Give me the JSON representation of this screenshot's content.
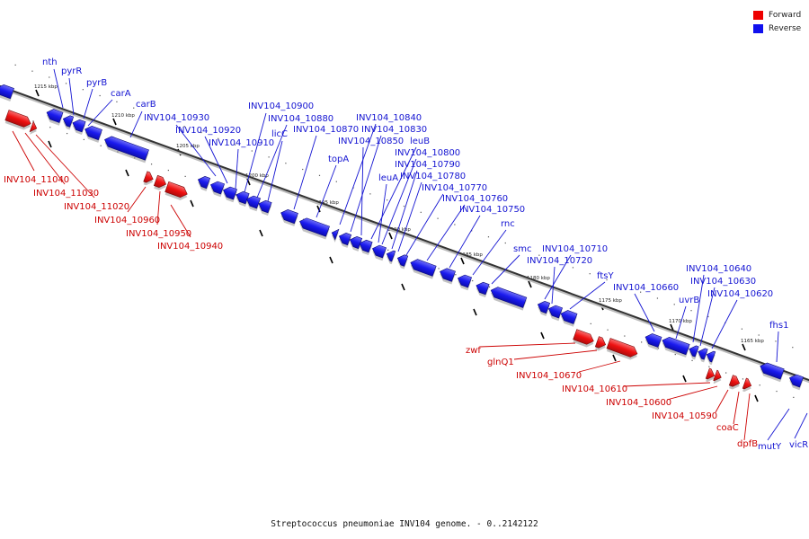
{
  "legend": {
    "forward_label": "Forward",
    "reverse_label": "Reverse",
    "forward_color": "#ee0000",
    "reverse_color": "#1010ee"
  },
  "caption": "Streptococcus pneumoniae INV104 genome. - 0..2142122",
  "scale_ticks": [
    "1215 kbp",
    "1210 kbp",
    "1205 kbp",
    "1200 kbp",
    "1195 kbp",
    "1190 kbp",
    "1185 kbp",
    "1180 kbp",
    "1175 kbp",
    "1170 kbp",
    "1165 kbp"
  ],
  "reverse_genes": [
    "nth",
    "pyrR",
    "pyrB",
    "carA",
    "carB",
    "INV104_10930",
    "INV104_10920",
    "INV104_10910",
    "INV104_10900",
    "INV104_10880",
    "licC",
    "INV104_10870",
    "INV104_10840",
    "INV104_10830",
    "INV104_10850",
    "leuB",
    "topA",
    "INV104_10800",
    "INV104_10790",
    "INV104_10780",
    "leuA",
    "INV104_10770",
    "INV104_10760",
    "INV104_10750",
    "rnc",
    "smc",
    "INV104_10710",
    "INV104_10720",
    "ftsY",
    "INV104_10660",
    "INV104_10640",
    "INV104_10630",
    "uvrB",
    "INV104_10620",
    "fhs1",
    "mutY",
    "vicR"
  ],
  "forward_genes": [
    "INV104_11040",
    "INV104_11030",
    "INV104_11020",
    "INV104_10960",
    "INV104_10950",
    "INV104_10940",
    "zwf",
    "glnQ1",
    "INV104_10670",
    "INV104_10610",
    "INV104_10600",
    "INV104_10590",
    "coaC",
    "dpfB"
  ]
}
